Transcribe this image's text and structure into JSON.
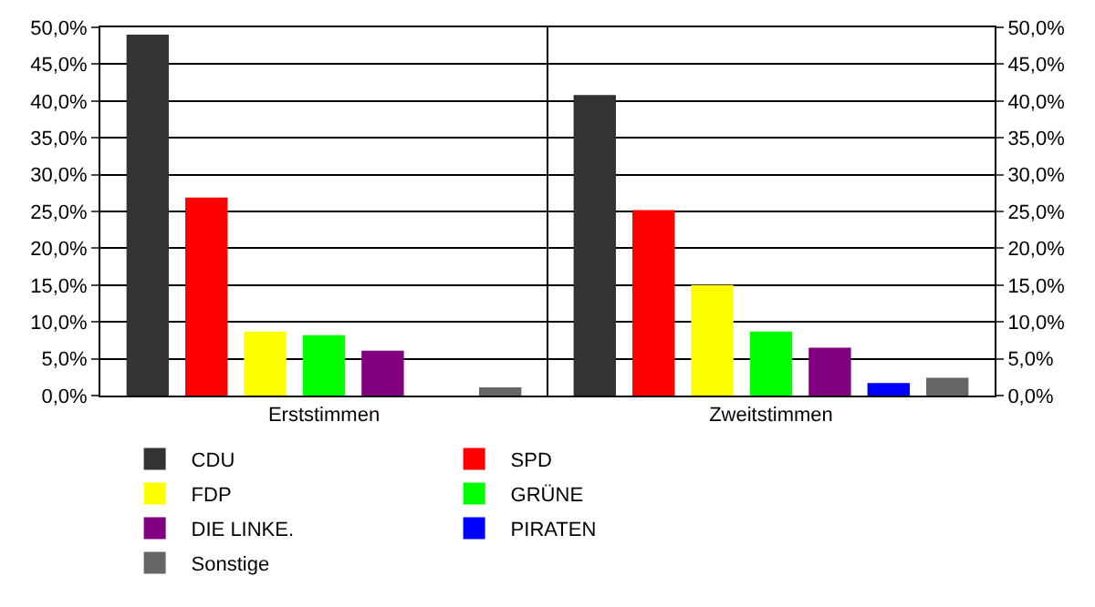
{
  "chart_data": {
    "type": "bar",
    "categories": [
      "Erststimmen",
      "Zweitstimmen"
    ],
    "series": [
      {
        "name": "CDU",
        "color": "#333333",
        "values": [
          49.0,
          40.8
        ]
      },
      {
        "name": "SPD",
        "color": "#ff0000",
        "values": [
          26.9,
          25.2
        ]
      },
      {
        "name": "FDP",
        "color": "#ffff00",
        "values": [
          8.7,
          15.0
        ]
      },
      {
        "name": "GRÜNE",
        "color": "#00ff00",
        "values": [
          8.2,
          8.7
        ]
      },
      {
        "name": "DIE LINKE.",
        "color": "#800080",
        "values": [
          6.1,
          6.5
        ]
      },
      {
        "name": "PIRATEN",
        "color": "#0000ff",
        "values": [
          null,
          1.7
        ]
      },
      {
        "name": "Sonstige",
        "color": "#666666",
        "values": [
          1.1,
          2.4
        ]
      }
    ],
    "ylim": [
      0,
      50
    ],
    "yticks": [
      {
        "value": 0,
        "label": "0,0%"
      },
      {
        "value": 5,
        "label": "5,0%"
      },
      {
        "value": 10,
        "label": "10,0%"
      },
      {
        "value": 15,
        "label": "15,0%"
      },
      {
        "value": 20,
        "label": "20,0%"
      },
      {
        "value": 25,
        "label": "25,0%"
      },
      {
        "value": 30,
        "label": "30,0%"
      },
      {
        "value": 35,
        "label": "35,0%"
      },
      {
        "value": 40,
        "label": "40,0%"
      },
      {
        "value": 45,
        "label": "45,0%"
      },
      {
        "value": 50,
        "label": "50,0%"
      }
    ],
    "y2lim": [
      0,
      50
    ],
    "y2ticks": [
      {
        "value": 0,
        "label": "0,0%"
      },
      {
        "value": 5,
        "label": "5,0%"
      },
      {
        "value": 10,
        "label": "10,0%"
      },
      {
        "value": 15,
        "label": "15,0%"
      },
      {
        "value": 20,
        "label": "20,0%"
      },
      {
        "value": 25,
        "label": "25,0%"
      },
      {
        "value": 30,
        "label": "30,0%"
      },
      {
        "value": 35,
        "label": "35,0%"
      },
      {
        "value": 40,
        "label": "40,0%"
      },
      {
        "value": 45,
        "label": "45,0%"
      },
      {
        "value": 50,
        "label": "50,0%"
      }
    ],
    "grid": true,
    "legend": "bottom"
  }
}
